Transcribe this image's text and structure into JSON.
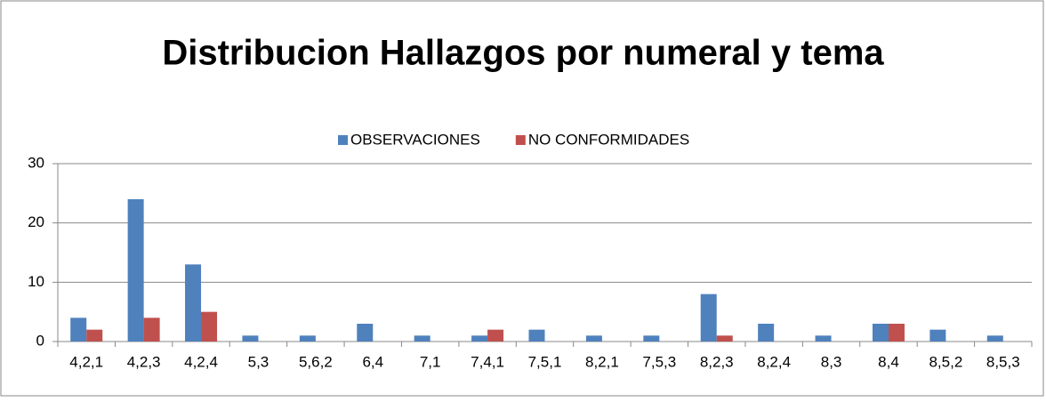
{
  "chart_data": {
    "type": "bar",
    "title": "Distribucion Hallazgos por numeral y tema",
    "categories": [
      "4,2,1",
      "4,2,3",
      "4,2,4",
      "5,3",
      "5,6,2",
      "6,4",
      "7,1",
      "7,4,1",
      "7,5,1",
      "8,2,1",
      "7,5,3",
      "8,2,3",
      "8,2,4",
      "8,3",
      "8,4",
      "8,5,2",
      "8,5,3"
    ],
    "series": [
      {
        "name": "OBSERVACIONES",
        "color": "#4f81bd",
        "values": [
          4,
          24,
          13,
          1,
          1,
          3,
          1,
          1,
          2,
          1,
          1,
          8,
          3,
          1,
          3,
          2,
          1
        ]
      },
      {
        "name": "NO CONFORMIDADES",
        "color": "#c0504d",
        "values": [
          2,
          4,
          5,
          0,
          0,
          0,
          0,
          2,
          0,
          0,
          0,
          1,
          0,
          0,
          3,
          0,
          0
        ]
      }
    ],
    "ylim": [
      0,
      30
    ],
    "yticks": [
      0,
      10,
      20,
      30
    ],
    "grid": true,
    "legend": "top"
  }
}
